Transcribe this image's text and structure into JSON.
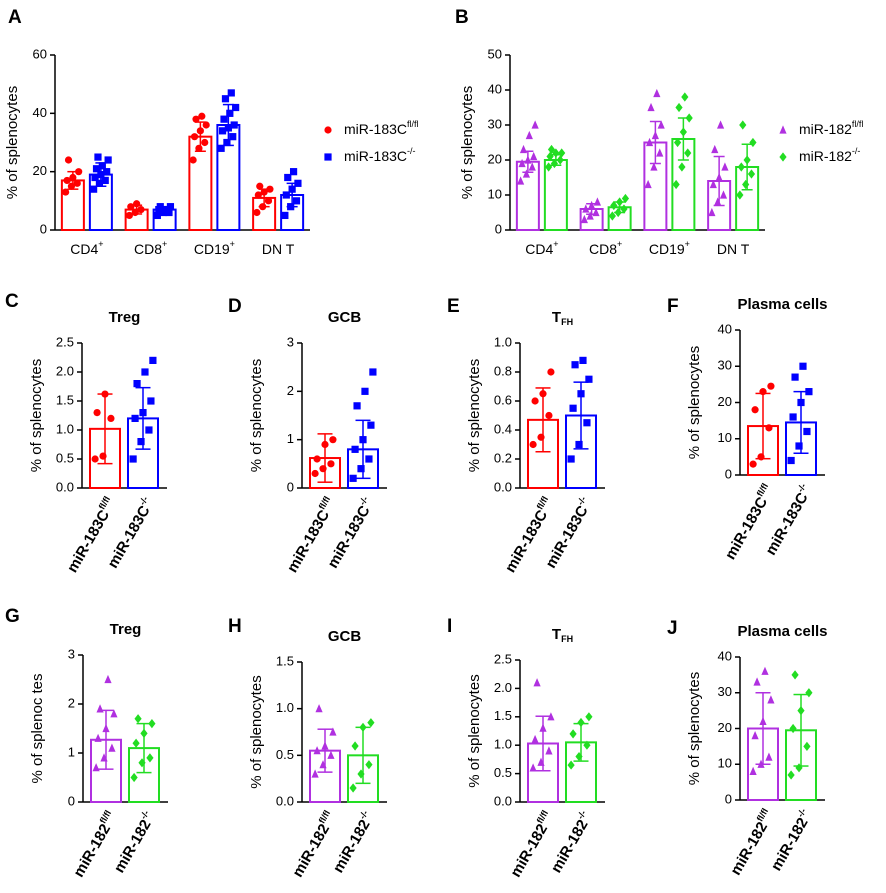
{
  "chart_data": [
    {
      "type": "bar",
      "panel": "A",
      "ylabel": "% of splenocytes",
      "categories": [
        "CD4",
        "CD8",
        "CD19",
        "DN T"
      ],
      "category_sups": [
        "+",
        "+",
        "+",
        null
      ],
      "ylim": [
        0,
        60
      ],
      "yticks": [
        0,
        20,
        40,
        60
      ],
      "legend": "right",
      "series": [
        {
          "name": "miR-183C",
          "name_sup": "fl/fl",
          "color": "#ff0000",
          "marker": "circle",
          "values": [
            17,
            7,
            32,
            11
          ],
          "errors": [
            3,
            1.5,
            5,
            3
          ],
          "points": [
            [
              13,
              15,
              16,
              17,
              18,
              20,
              24
            ],
            [
              5,
              6,
              7,
              8,
              9
            ],
            [
              24,
              28,
              30,
              32,
              34,
              36,
              38,
              39
            ],
            [
              6,
              8,
              10,
              12,
              13,
              14,
              15
            ]
          ]
        },
        {
          "name": "miR-183C",
          "name_sup": "-/-",
          "color": "#0000ff",
          "marker": "square",
          "values": [
            19,
            7,
            36,
            12
          ],
          "errors": [
            4,
            1,
            7,
            4
          ],
          "points": [
            [
              14,
              16,
              17,
              18,
              19,
              20,
              21,
              22,
              24,
              25
            ],
            [
              5,
              6,
              6,
              7,
              7,
              8,
              8
            ],
            [
              28,
              30,
              32,
              34,
              35,
              36,
              38,
              40,
              42,
              45,
              47
            ],
            [
              5,
              8,
              10,
              12,
              14,
              16,
              18,
              20
            ]
          ]
        }
      ]
    },
    {
      "type": "bar",
      "panel": "B",
      "ylabel": "% of splenocytes",
      "categories": [
        "CD4",
        "CD8",
        "CD19",
        "DN T"
      ],
      "category_sups": [
        "+",
        "+",
        "+",
        null
      ],
      "ylim": [
        0,
        50
      ],
      "yticks": [
        0,
        10,
        20,
        30,
        40,
        50
      ],
      "legend": "right",
      "series": [
        {
          "name": "miR-182",
          "name_sup": "fl/fl",
          "color": "#b030e0",
          "marker": "triangle",
          "values": [
            19.5,
            6,
            25,
            14
          ],
          "errors": [
            3,
            1.5,
            6,
            7
          ],
          "points": [
            [
              14,
              16,
              18,
              19,
              20,
              21,
              23,
              27,
              30
            ],
            [
              3,
              4,
              5,
              6,
              7,
              8
            ],
            [
              13,
              18,
              22,
              25,
              27,
              30,
              35,
              39
            ],
            [
              5,
              8,
              10,
              13,
              15,
              18,
              23,
              30
            ]
          ]
        },
        {
          "name": "miR-182",
          "name_sup": "-/-",
          "color": "#22dd22",
          "marker": "diamond",
          "values": [
            20,
            6.5,
            26,
            18
          ],
          "errors": [
            1.5,
            1.5,
            6,
            6.5
          ],
          "points": [
            [
              18,
              19,
              20,
              21,
              22,
              22,
              23
            ],
            [
              4,
              5,
              6,
              7,
              8,
              9
            ],
            [
              13,
              18,
              22,
              25,
              28,
              32,
              35,
              38
            ],
            [
              10,
              13,
              16,
              18,
              20,
              25,
              30
            ]
          ]
        }
      ]
    },
    {
      "type": "dotbar",
      "panel": "C",
      "title": "Treg",
      "ylabel": "% of splenocytes",
      "categories": [
        "miR-183C",
        "miR-183C"
      ],
      "category_sups": [
        "fl/fl",
        "-/-"
      ],
      "colors": [
        "#ff0000",
        "#0000ff"
      ],
      "markers": [
        "circle",
        "square"
      ],
      "values": [
        1.02,
        1.2
      ],
      "errors": [
        0.6,
        0.53
      ],
      "points": [
        [
          0.5,
          0.55,
          1.2,
          1.3,
          1.62
        ],
        [
          0.5,
          0.8,
          1.0,
          1.2,
          1.3,
          1.5,
          1.8,
          2.0,
          2.2
        ]
      ],
      "ylim": [
        0,
        2.5
      ],
      "yticks": [
        {
          "value": 0,
          "label": "0.0"
        },
        0.5,
        {
          "value": 1,
          "label": "1.0"
        },
        1.5,
        {
          "value": 2,
          "label": "2.0"
        },
        2.5
      ]
    },
    {
      "type": "dotbar",
      "panel": "D",
      "title": "GCB",
      "ylabel": "% of splenocytes",
      "categories": [
        "miR-183C",
        "miR-183C"
      ],
      "category_sups": [
        "fl/fl",
        "-/-"
      ],
      "colors": [
        "#ff0000",
        "#0000ff"
      ],
      "markers": [
        "circle",
        "square"
      ],
      "values": [
        0.62,
        0.8
      ],
      "errors": [
        0.5,
        0.6
      ],
      "points": [
        [
          0.3,
          0.4,
          0.5,
          0.6,
          0.9,
          1.0
        ],
        [
          0.2,
          0.4,
          0.6,
          0.8,
          1.0,
          1.3,
          1.7,
          2.0,
          2.4
        ]
      ],
      "ylim": [
        0,
        3
      ],
      "yticks": [
        0,
        1,
        2,
        3
      ]
    },
    {
      "type": "dotbar",
      "panel": "E",
      "title": "T",
      "title_sub": "FH",
      "ylabel": "% of splenocytes",
      "categories": [
        "miR-183C",
        "miR-183C"
      ],
      "category_sups": [
        "fl/fl",
        "-/-"
      ],
      "colors": [
        "#ff0000",
        "#0000ff"
      ],
      "markers": [
        "circle",
        "square"
      ],
      "values": [
        0.47,
        0.5
      ],
      "errors": [
        0.22,
        0.23
      ],
      "points": [
        [
          0.3,
          0.35,
          0.5,
          0.6,
          0.65,
          0.8
        ],
        [
          0.2,
          0.3,
          0.45,
          0.55,
          0.65,
          0.75,
          0.85,
          0.88
        ]
      ],
      "ylim": [
        0,
        1
      ],
      "yticks": [
        {
          "value": 0,
          "label": "0.0"
        },
        0.2,
        0.4,
        0.6,
        0.8,
        {
          "value": 1,
          "label": "1.0"
        }
      ]
    },
    {
      "type": "dotbar",
      "panel": "F",
      "title": "Plasma cells",
      "ylabel": "% of splenocytes",
      "categories": [
        "miR-183C",
        "miR-183C"
      ],
      "category_sups": [
        "fl/fl",
        "-/-"
      ],
      "colors": [
        "#ff0000",
        "#0000ff"
      ],
      "markers": [
        "circle",
        "square"
      ],
      "values": [
        13.5,
        14.5
      ],
      "errors": [
        9,
        8.5
      ],
      "points": [
        [
          3,
          5,
          13,
          18,
          23,
          24.5
        ],
        [
          4,
          8,
          12,
          16,
          20,
          23,
          27,
          30
        ]
      ],
      "ylim": [
        0,
        40
      ],
      "yticks": [
        0,
        10,
        20,
        30,
        40
      ]
    },
    {
      "type": "dotbar",
      "panel": "G",
      "title": "Treg",
      "ylabel": "% of splenoc  tes",
      "categories": [
        "miR-182",
        "miR-182"
      ],
      "category_sups": [
        "fl/fl",
        "-/-"
      ],
      "colors": [
        "#b030e0",
        "#22dd22"
      ],
      "markers": [
        "triangle",
        "diamond"
      ],
      "values": [
        1.27,
        1.1
      ],
      "errors": [
        0.6,
        0.5
      ],
      "points": [
        [
          0.7,
          0.9,
          1.1,
          1.3,
          1.5,
          1.8,
          1.9,
          2.5
        ],
        [
          0.5,
          0.8,
          0.9,
          1.2,
          1.4,
          1.6,
          1.7
        ]
      ],
      "ylim": [
        0,
        3
      ],
      "yticks": [
        0,
        1,
        2,
        3
      ]
    },
    {
      "type": "dotbar",
      "panel": "H",
      "title": "GCB",
      "ylabel": "% of splenocytes",
      "categories": [
        "miR-182",
        "miR-182"
      ],
      "category_sups": [
        "fl/fl",
        "-/-"
      ],
      "colors": [
        "#b030e0",
        "#22dd22"
      ],
      "markers": [
        "triangle",
        "diamond"
      ],
      "values": [
        0.55,
        0.5
      ],
      "errors": [
        0.23,
        0.3
      ],
      "points": [
        [
          0.3,
          0.4,
          0.5,
          0.55,
          0.6,
          0.75,
          1.0
        ],
        [
          0.15,
          0.3,
          0.4,
          0.6,
          0.8,
          0.85
        ]
      ],
      "ylim": [
        0,
        1.5
      ],
      "yticks": [
        {
          "value": 0,
          "label": "0.0"
        },
        0.5,
        {
          "value": 1,
          "label": "1.0"
        },
        1.5
      ]
    },
    {
      "type": "dotbar",
      "panel": "I",
      "title": "T",
      "title_sub": "FH",
      "ylabel": "% of splenocytes",
      "categories": [
        "miR-182",
        "miR-182"
      ],
      "category_sups": [
        "fl/fl",
        "-/-"
      ],
      "colors": [
        "#b030e0",
        "#22dd22"
      ],
      "markers": [
        "triangle",
        "diamond"
      ],
      "values": [
        1.03,
        1.05
      ],
      "errors": [
        0.48,
        0.33
      ],
      "points": [
        [
          0.6,
          0.7,
          0.9,
          1.1,
          1.3,
          1.5,
          2.1
        ],
        [
          0.65,
          0.8,
          1.0,
          1.2,
          1.4,
          1.5
        ]
      ],
      "ylim": [
        0,
        2.5
      ],
      "yticks": [
        {
          "value": 0,
          "label": "0.0"
        },
        0.5,
        {
          "value": 1,
          "label": "1.0"
        },
        1.5,
        {
          "value": 2,
          "label": "2.0"
        },
        2.5
      ]
    },
    {
      "type": "dotbar",
      "panel": "J",
      "title": "Plasma cells",
      "ylabel": "% of splenocytes",
      "categories": [
        "miR-182",
        "miR-182"
      ],
      "category_sups": [
        "fl/fl",
        "-/-"
      ],
      "colors": [
        "#b030e0",
        "#22dd22"
      ],
      "markers": [
        "triangle",
        "diamond"
      ],
      "values": [
        20,
        19.5
      ],
      "errors": [
        10,
        10
      ],
      "points": [
        [
          8,
          10,
          12,
          18,
          22,
          28,
          33,
          36
        ],
        [
          7,
          9,
          15,
          20,
          25,
          30,
          35
        ]
      ],
      "ylim": [
        0,
        40
      ],
      "yticks": [
        0,
        10,
        20,
        30,
        40
      ]
    }
  ]
}
